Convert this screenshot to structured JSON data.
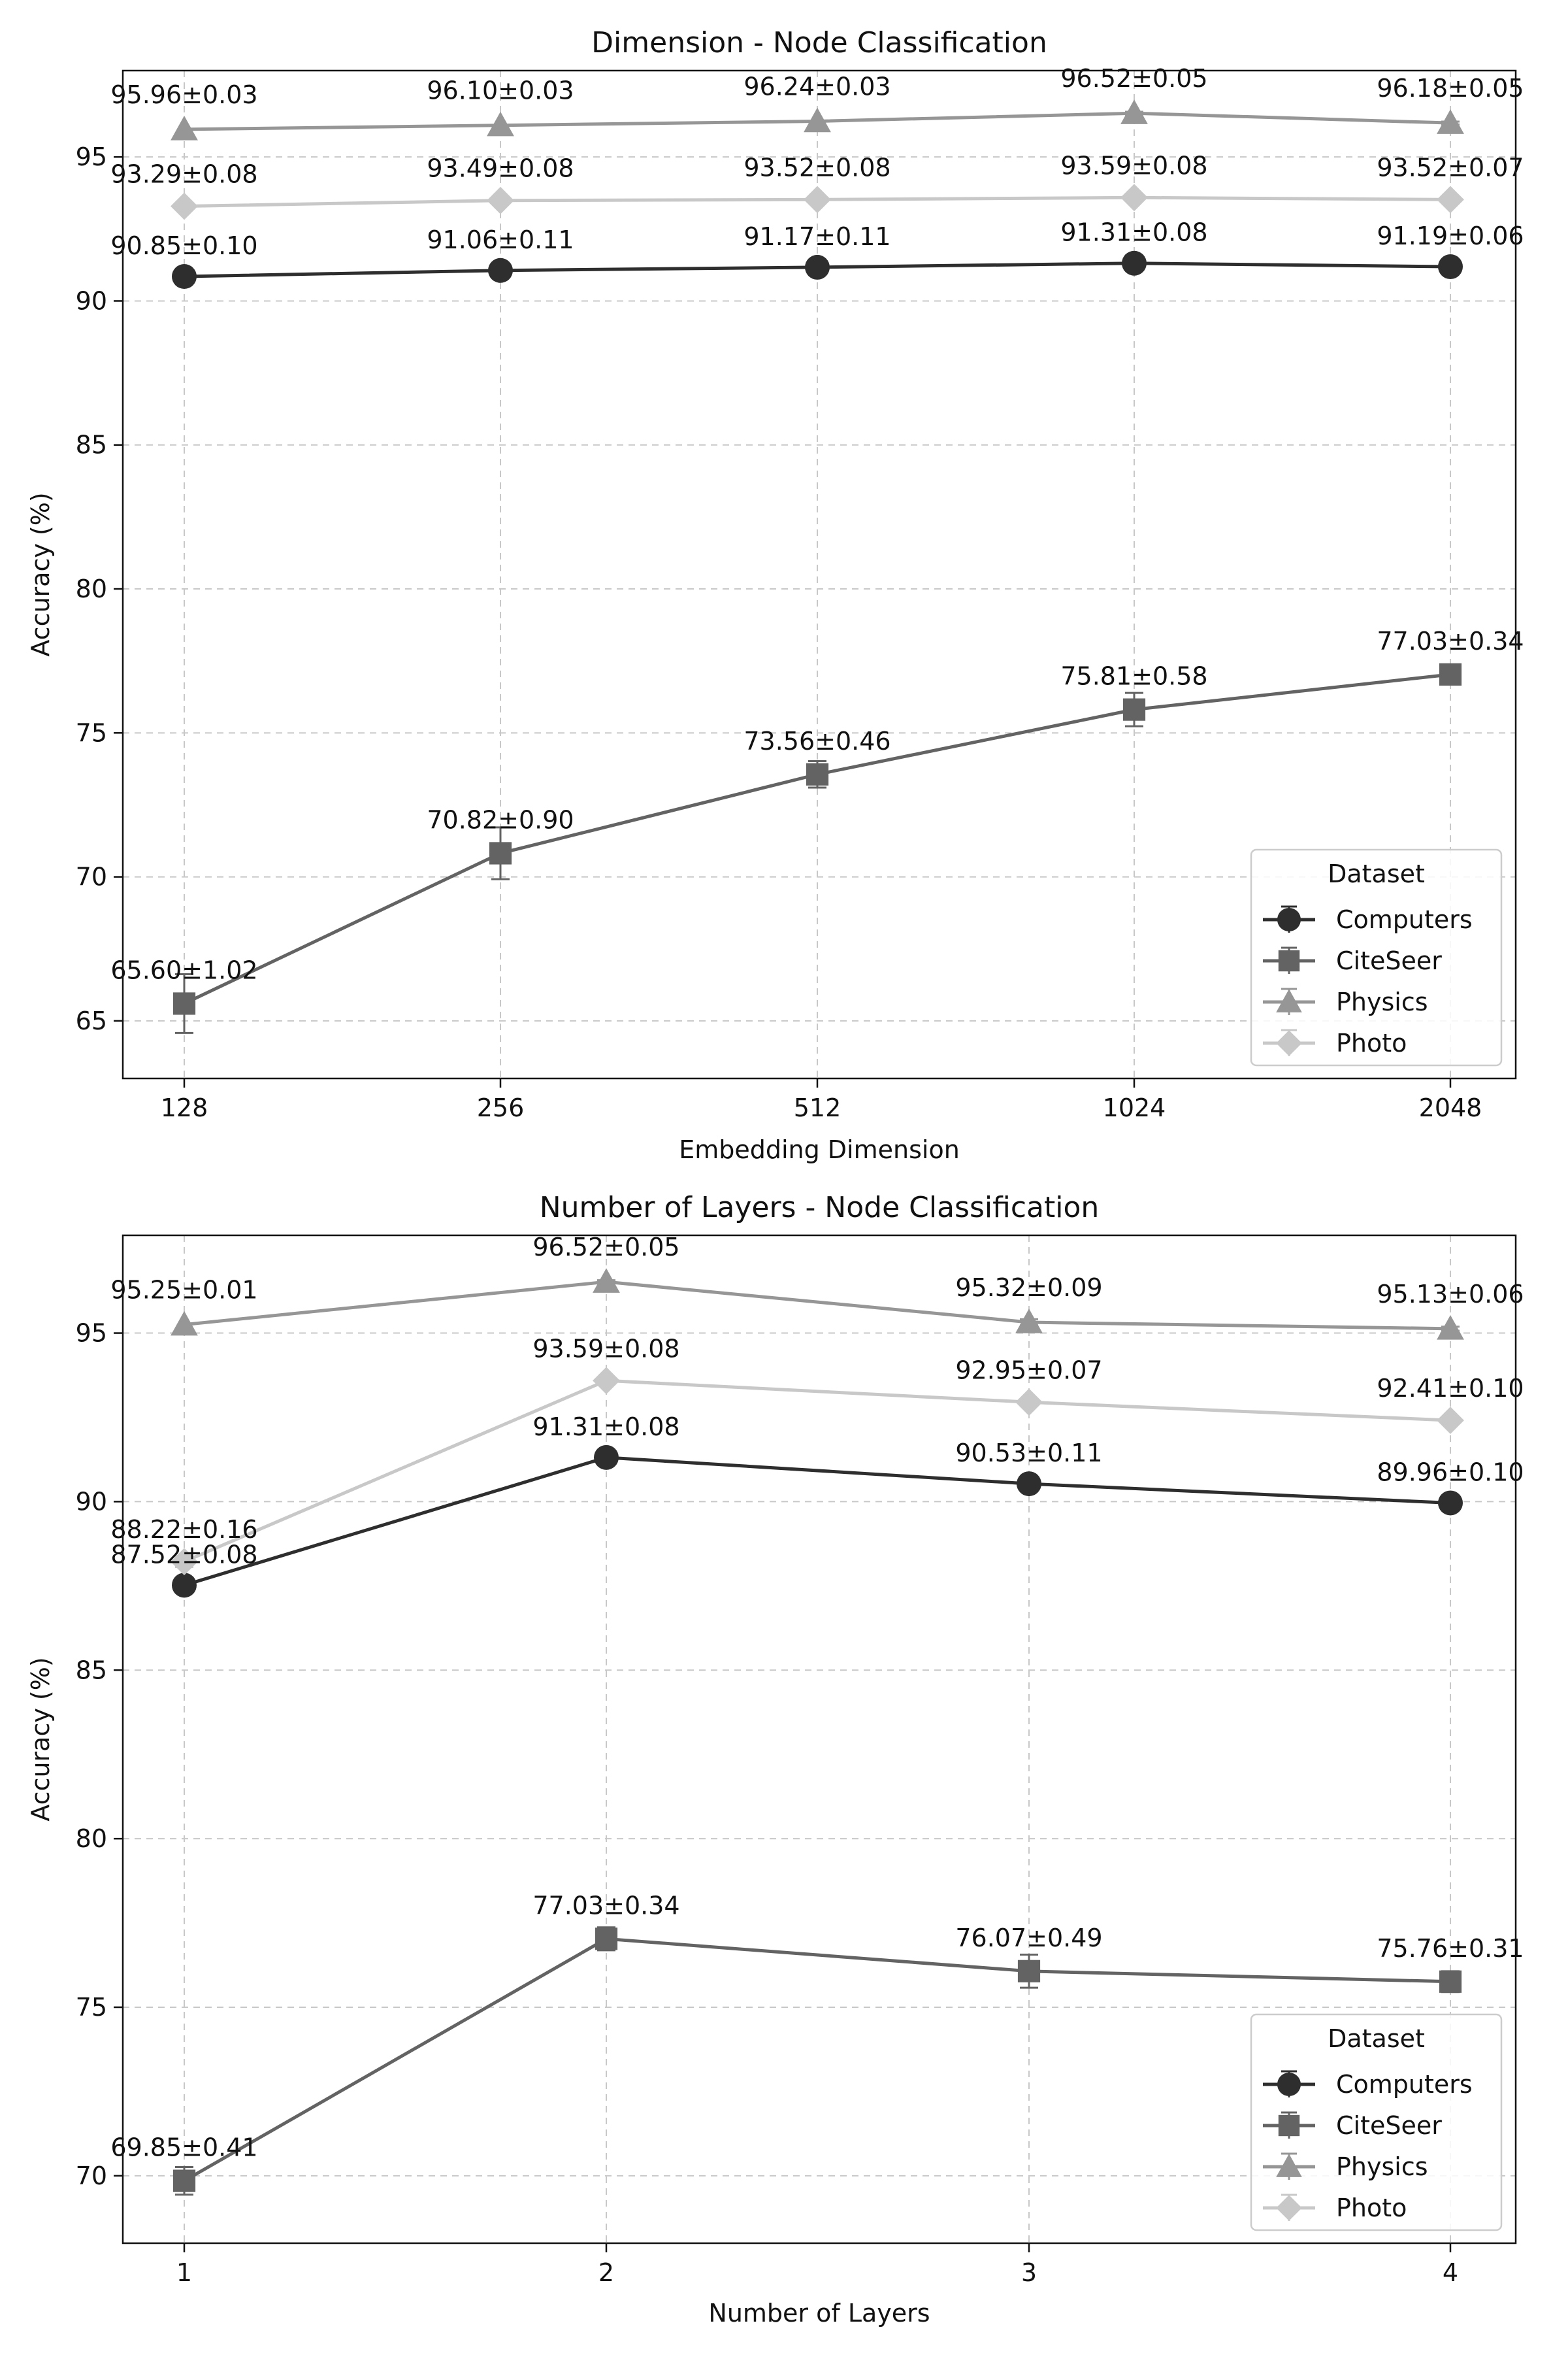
{
  "chart_data": [
    {
      "type": "line",
      "title": "Dimension - Node Classification",
      "xlabel": "Embedding Dimension",
      "ylabel": "Accuracy (%)",
      "categories": [
        "128",
        "256",
        "512",
        "1024",
        "2048"
      ],
      "ylim": [
        63.0,
        98.0
      ],
      "yticks": [
        65,
        70,
        75,
        80,
        85,
        90,
        95
      ],
      "grid": true,
      "legend": {
        "title": "Dataset",
        "position": "lower-right"
      },
      "series": [
        {
          "name": "Computers",
          "color": "#2e2e2e",
          "marker": "circle",
          "values": [
            90.85,
            91.06,
            91.17,
            91.31,
            91.19
          ],
          "errors": [
            0.1,
            0.11,
            0.11,
            0.08,
            0.06
          ],
          "labels": [
            "90.85±0.10",
            "91.06±0.11",
            "91.17±0.11",
            "91.31±0.08",
            "91.19±0.06"
          ]
        },
        {
          "name": "CiteSeer",
          "color": "#636363",
          "marker": "square",
          "values": [
            65.6,
            70.82,
            73.56,
            75.81,
            77.03
          ],
          "errors": [
            1.02,
            0.9,
            0.46,
            0.58,
            0.34
          ],
          "labels": [
            "65.60±1.02",
            "70.82±0.90",
            "73.56±0.46",
            "75.81±0.58",
            "77.03±0.34"
          ]
        },
        {
          "name": "Physics",
          "color": "#969696",
          "marker": "triangle",
          "values": [
            95.96,
            96.1,
            96.24,
            96.52,
            96.18
          ],
          "errors": [
            0.03,
            0.03,
            0.03,
            0.05,
            0.05
          ],
          "labels": [
            "95.96±0.03",
            "96.10±0.03",
            "96.24±0.03",
            "96.52±0.05",
            "96.18±0.05"
          ]
        },
        {
          "name": "Photo",
          "color": "#c8c8c8",
          "marker": "diamond",
          "values": [
            93.29,
            93.49,
            93.52,
            93.59,
            93.52
          ],
          "errors": [
            0.08,
            0.08,
            0.08,
            0.08,
            0.07
          ],
          "labels": [
            "93.29±0.08",
            "93.49±0.08",
            "93.52±0.08",
            "93.59±0.08",
            "93.52±0.07"
          ]
        }
      ]
    },
    {
      "type": "line",
      "title": "Number of Layers - Node Classification",
      "xlabel": "Number of Layers",
      "ylabel": "Accuracy (%)",
      "categories": [
        "1",
        "2",
        "3",
        "4"
      ],
      "ylim": [
        68.0,
        97.9
      ],
      "yticks": [
        70,
        75,
        80,
        85,
        90,
        95
      ],
      "grid": true,
      "legend": {
        "title": "Dataset",
        "position": "lower-right"
      },
      "series": [
        {
          "name": "Computers",
          "color": "#2e2e2e",
          "marker": "circle",
          "values": [
            87.52,
            91.31,
            90.53,
            89.96
          ],
          "errors": [
            0.08,
            0.08,
            0.11,
            0.1
          ],
          "labels": [
            "87.52±0.08",
            "91.31±0.08",
            "90.53±0.11",
            "89.96±0.10"
          ]
        },
        {
          "name": "CiteSeer",
          "color": "#636363",
          "marker": "square",
          "values": [
            69.85,
            77.03,
            76.07,
            75.76
          ],
          "errors": [
            0.41,
            0.34,
            0.49,
            0.31
          ],
          "labels": [
            "69.85±0.41",
            "77.03±0.34",
            "76.07±0.49",
            "75.76±0.31"
          ]
        },
        {
          "name": "Physics",
          "color": "#969696",
          "marker": "triangle",
          "values": [
            95.25,
            96.52,
            95.32,
            95.13
          ],
          "errors": [
            0.01,
            0.05,
            0.09,
            0.06
          ],
          "labels": [
            "95.25±0.01",
            "96.52±0.05",
            "95.32±0.09",
            "95.13±0.06"
          ]
        },
        {
          "name": "Photo",
          "color": "#c8c8c8",
          "marker": "diamond",
          "values": [
            88.22,
            93.59,
            92.95,
            92.41
          ],
          "errors": [
            0.16,
            0.08,
            0.07,
            0.1
          ],
          "labels": [
            "88.22±0.16",
            "93.59±0.08",
            "92.95±0.07",
            "92.41±0.10"
          ]
        }
      ]
    }
  ]
}
